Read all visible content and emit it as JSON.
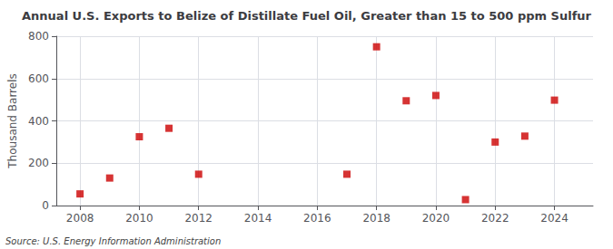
{
  "chart_data": {
    "type": "scatter",
    "title": "Annual U.S. Exports to Belize of Distillate Fuel Oil, Greater than 15 to 500 ppm Sulfur",
    "ylabel": "Thousand Barrels",
    "annotation": "Source: U.S. Energy Information Administration",
    "x": [
      2008,
      2009,
      2010,
      2011,
      2012,
      2017,
      2018,
      2019,
      2020,
      2021,
      2022,
      2023,
      2024
    ],
    "values": [
      55,
      130,
      325,
      365,
      148,
      148,
      750,
      495,
      520,
      28,
      300,
      328,
      498
    ],
    "xlim": [
      2007.2,
      2025.3
    ],
    "ylim": [
      0,
      800
    ],
    "xticks": [
      2008,
      2010,
      2012,
      2014,
      2016,
      2018,
      2020,
      2022,
      2024
    ],
    "yticks": [
      0,
      200,
      400,
      600,
      800
    ],
    "color": "#cc0000",
    "marker": "square",
    "grid": true
  }
}
